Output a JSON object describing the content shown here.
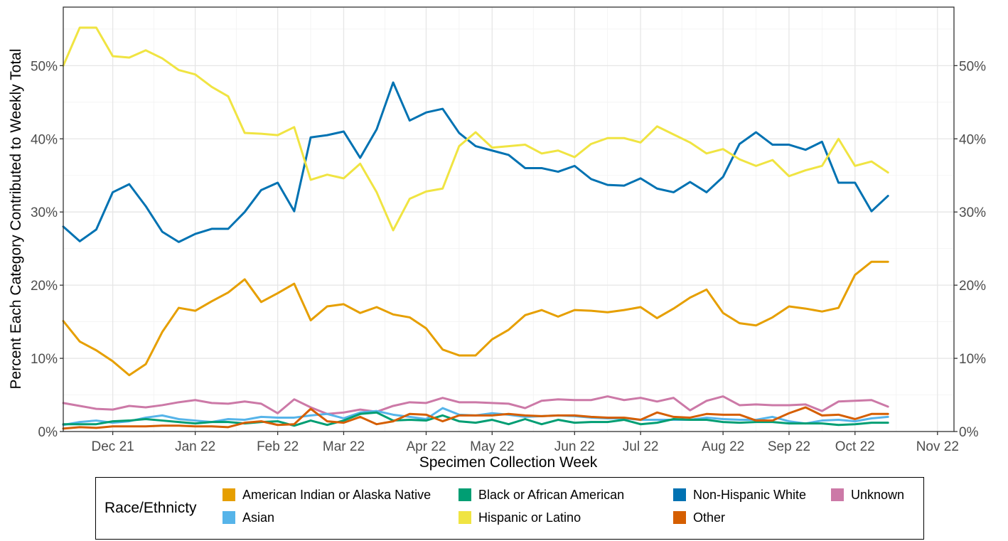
{
  "chart_data": {
    "type": "line",
    "title": "",
    "xlabel": "Specimen Collection Week",
    "ylabel": "Percent Each Category Contributed to Weekly Total",
    "ylim": [
      0,
      58
    ],
    "y_ticks": [
      "0%",
      "10%",
      "20%",
      "30%",
      "40%",
      "50%"
    ],
    "y_tick_values": [
      0,
      10,
      20,
      30,
      40,
      50
    ],
    "x_tick_labels": [
      "Dec 21",
      "Jan 22",
      "Feb 22",
      "Mar 22",
      "Apr 22",
      "May 22",
      "Jun 22",
      "Jul 22",
      "Aug 22",
      "Sep 22",
      "Oct 22",
      "Nov 22"
    ],
    "x_tick_weeks": [
      3,
      8,
      13,
      17,
      22,
      26,
      31,
      35,
      40,
      44,
      48,
      53
    ],
    "x_range_weeks": [
      0,
      54
    ],
    "grid": true,
    "secondary_y_axis": true,
    "legend_title": "Race/Ethnicty",
    "legend_position": "bottom",
    "series": [
      {
        "name": "American Indian or Alaska Native",
        "color": "#E69F00",
        "values": [
          15.1,
          12.3,
          11.1,
          9.6,
          7.7,
          9.2,
          13.6,
          16.9,
          16.5,
          17.8,
          19.0,
          20.8,
          17.7,
          18.9,
          20.2,
          15.2,
          17.1,
          17.4,
          16.2,
          17.0,
          16.0,
          15.6,
          14.1,
          11.2,
          10.4,
          10.4,
          12.6,
          13.9,
          15.9,
          16.6,
          15.7,
          16.6,
          16.5,
          16.3,
          16.6,
          17.0,
          15.5,
          16.8,
          18.3,
          19.4,
          16.2,
          14.8,
          14.5,
          15.6,
          17.1,
          16.8,
          16.4,
          16.9,
          21.4,
          23.2,
          23.2
        ]
      },
      {
        "name": "Non-Hispanic White",
        "color": "#0072B2",
        "values": [
          28.0,
          26.0,
          27.6,
          32.7,
          33.8,
          30.8,
          27.3,
          25.9,
          27.0,
          27.7,
          27.7,
          30.0,
          33.0,
          34.0,
          30.1,
          40.2,
          40.5,
          41.0,
          37.4,
          41.3,
          47.7,
          42.5,
          43.6,
          44.1,
          40.8,
          39.0,
          38.4,
          37.8,
          36.0,
          36.0,
          35.5,
          36.3,
          34.5,
          33.7,
          33.6,
          34.6,
          33.2,
          32.7,
          34.1,
          32.7,
          34.8,
          39.3,
          40.9,
          39.2,
          39.2,
          38.5,
          39.6,
          34.0,
          34.0,
          30.1,
          32.2
        ]
      },
      {
        "name": "Hispanic or Latino",
        "color": "#F0E442",
        "values": [
          50.0,
          55.2,
          55.2,
          51.3,
          51.1,
          52.1,
          51.0,
          49.4,
          48.8,
          47.1,
          45.8,
          40.8,
          40.7,
          40.5,
          41.6,
          34.4,
          35.1,
          34.6,
          36.6,
          32.7,
          27.5,
          31.8,
          32.8,
          33.2,
          39.0,
          40.9,
          38.8,
          39.0,
          39.2,
          38.0,
          38.4,
          37.5,
          39.3,
          40.1,
          40.1,
          39.5,
          41.7,
          40.6,
          39.5,
          38.0,
          38.6,
          37.2,
          36.3,
          37.1,
          34.9,
          35.7,
          36.3,
          40.0,
          36.3,
          36.9,
          35.4
        ]
      },
      {
        "name": "Unknown",
        "color": "#CC79A7",
        "values": [
          3.9,
          3.5,
          3.1,
          3.0,
          3.5,
          3.3,
          3.6,
          4.0,
          4.3,
          3.9,
          3.8,
          4.1,
          3.8,
          2.5,
          4.4,
          3.3,
          2.4,
          2.6,
          3.0,
          2.7,
          3.5,
          4.0,
          3.9,
          4.6,
          4.0,
          4.0,
          3.9,
          3.8,
          3.2,
          4.2,
          4.4,
          4.3,
          4.3,
          4.8,
          4.3,
          4.6,
          4.1,
          4.6,
          2.9,
          4.2,
          4.8,
          3.6,
          3.7,
          3.6,
          3.6,
          3.7,
          2.8,
          4.1,
          4.2,
          4.3,
          3.4
        ]
      },
      {
        "name": "Asian",
        "color": "#56B4E9",
        "values": [
          0.9,
          1.3,
          1.5,
          1.2,
          1.4,
          1.9,
          2.2,
          1.7,
          1.5,
          1.3,
          1.7,
          1.6,
          2.0,
          1.9,
          1.9,
          2.2,
          2.4,
          1.8,
          2.6,
          2.8,
          2.3,
          2.0,
          1.7,
          3.2,
          2.3,
          2.2,
          2.5,
          2.3,
          2.0,
          2.1,
          2.2,
          2.1,
          1.9,
          1.8,
          1.8,
          1.6,
          1.6,
          1.6,
          1.6,
          1.9,
          1.7,
          1.6,
          1.6,
          2.0,
          1.4,
          1.1,
          1.5,
          1.6,
          1.4,
          1.8,
          2.0
        ]
      },
      {
        "name": "Black or African American",
        "color": "#009E73",
        "values": [
          1.0,
          1.0,
          1.0,
          1.4,
          1.5,
          1.7,
          1.5,
          1.3,
          1.1,
          1.3,
          1.3,
          1.1,
          1.3,
          1.4,
          0.8,
          1.5,
          0.9,
          1.5,
          2.4,
          2.6,
          1.5,
          1.6,
          1.5,
          2.2,
          1.4,
          1.2,
          1.6,
          1.0,
          1.7,
          1.0,
          1.6,
          1.2,
          1.3,
          1.3,
          1.6,
          1.0,
          1.2,
          1.7,
          1.6,
          1.6,
          1.3,
          1.2,
          1.3,
          1.3,
          1.1,
          1.1,
          1.1,
          0.9,
          1.0,
          1.2,
          1.2
        ]
      },
      {
        "name": "Other",
        "color": "#D55E00",
        "values": [
          0.4,
          0.6,
          0.5,
          0.7,
          0.7,
          0.7,
          0.8,
          0.8,
          0.7,
          0.7,
          0.6,
          1.2,
          1.4,
          0.9,
          1.0,
          3.1,
          1.4,
          1.2,
          2.0,
          1.0,
          1.4,
          2.4,
          2.3,
          1.4,
          2.2,
          2.2,
          2.2,
          2.4,
          2.2,
          2.1,
          2.2,
          2.2,
          2.0,
          1.9,
          1.9,
          1.6,
          2.6,
          2.0,
          1.9,
          2.4,
          2.3,
          2.3,
          1.5,
          1.5,
          2.5,
          3.3,
          2.2,
          2.3,
          1.7,
          2.4,
          2.4
        ]
      }
    ]
  },
  "legend_rows": [
    [
      "American Indian or Alaska Native",
      "Black or African American",
      "Non-Hispanic White",
      "Unknown"
    ],
    [
      "Asian",
      "Hispanic or Latino",
      "Other"
    ]
  ]
}
